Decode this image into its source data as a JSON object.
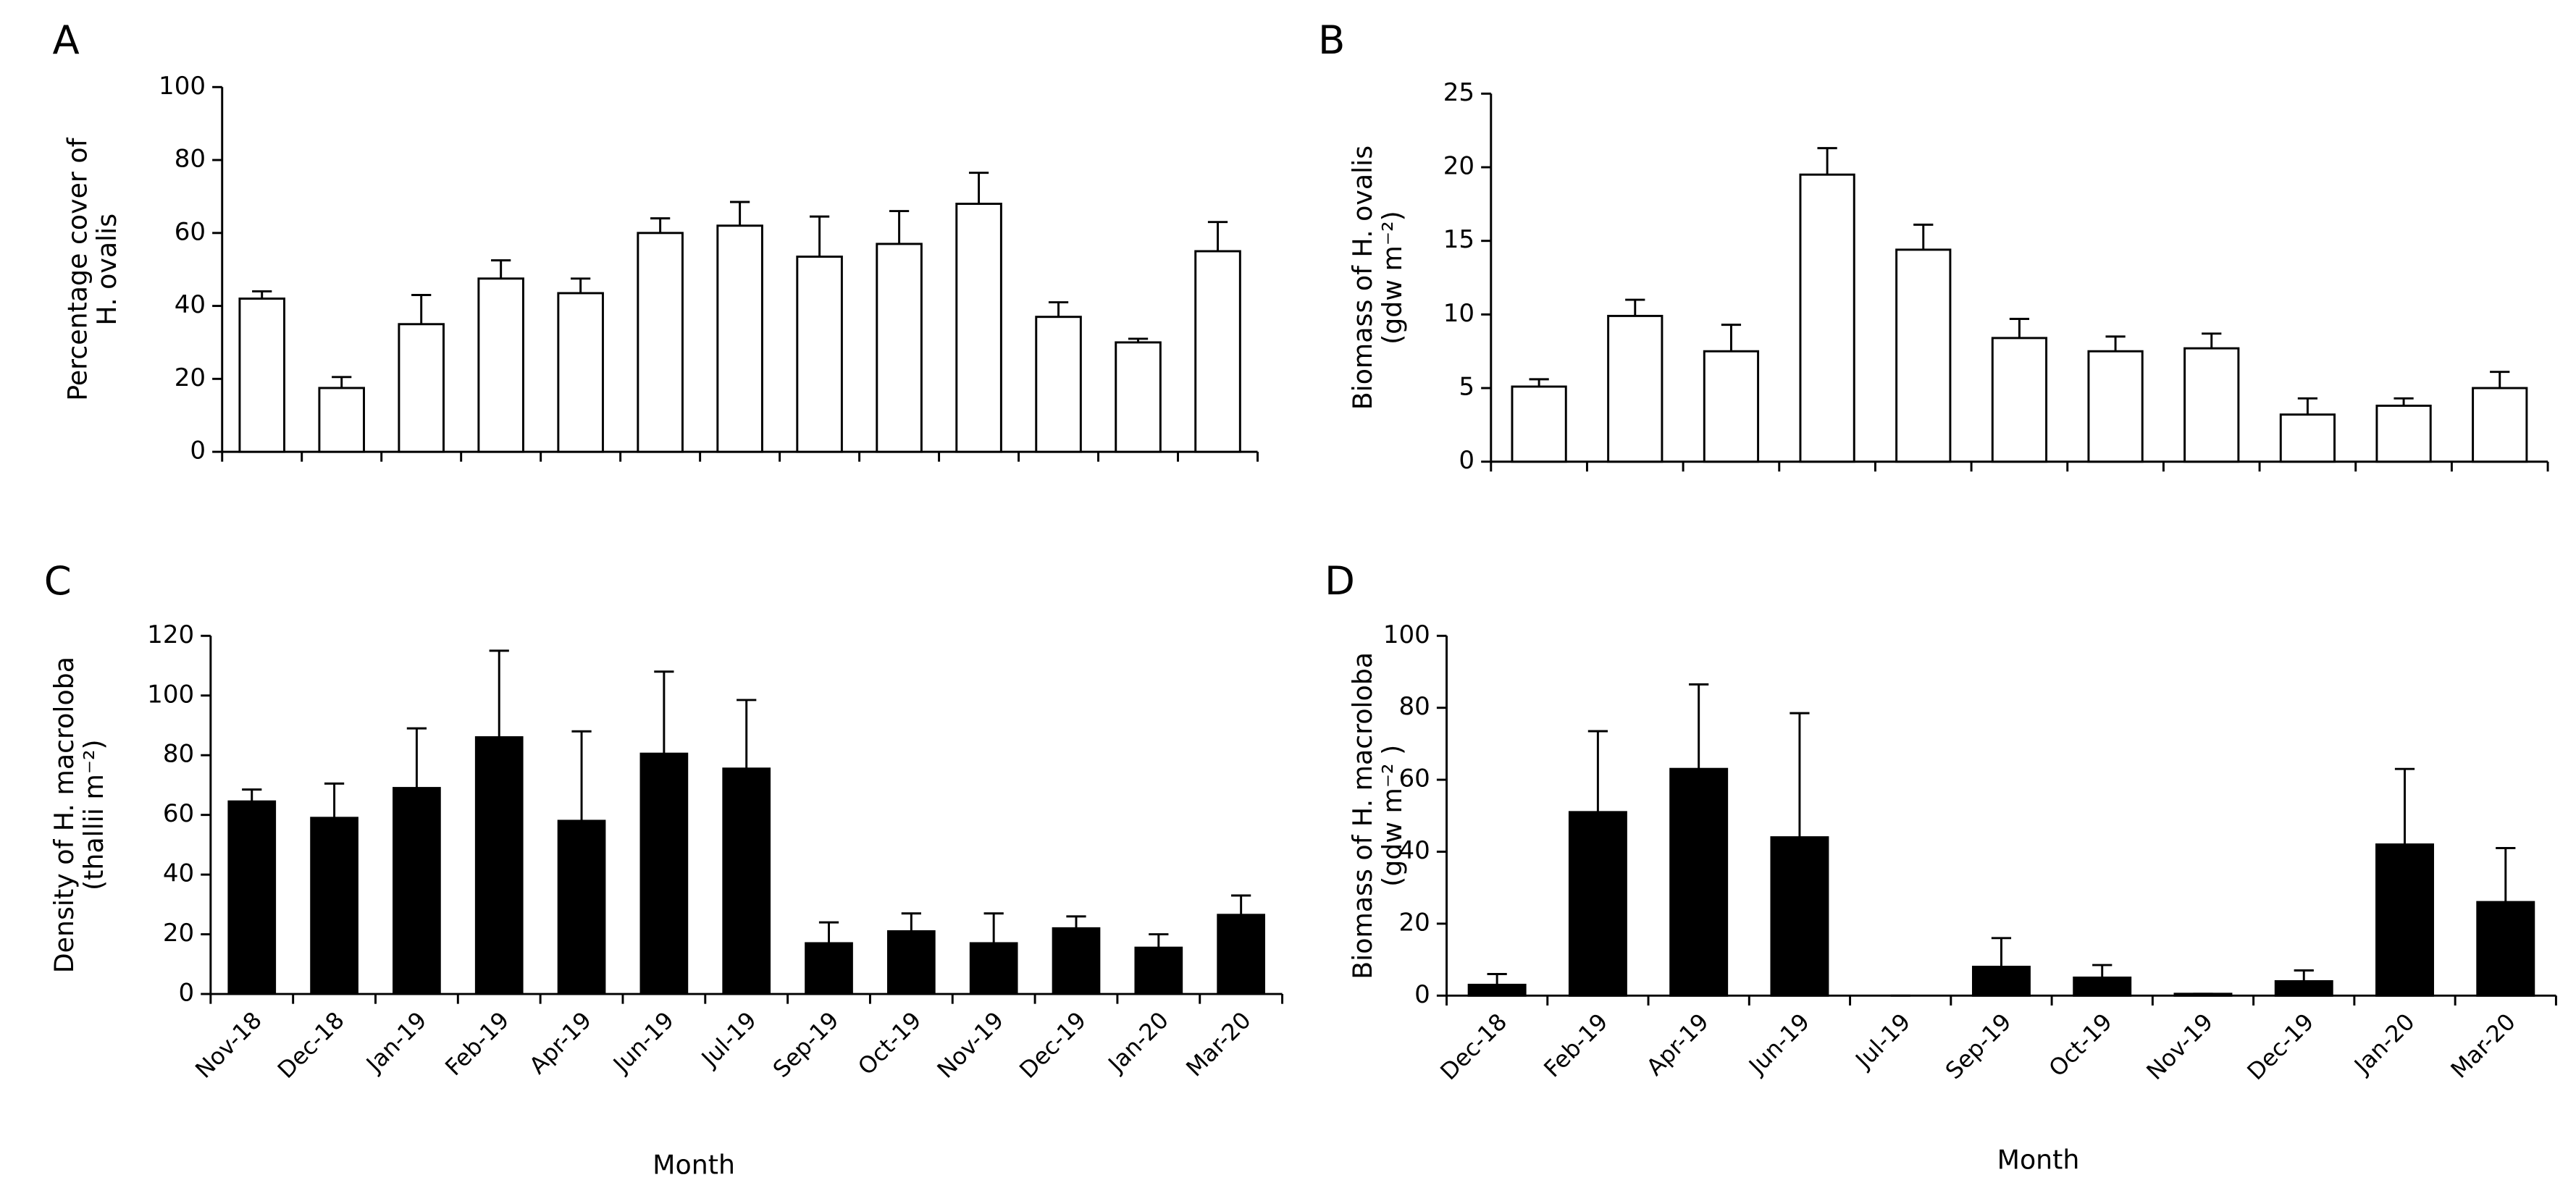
{
  "chart_data": [
    {
      "type": "bar",
      "panel": "A",
      "ylabel": [
        "Percentage cover of",
        "H. ovalis"
      ],
      "color": "#ffffff",
      "categories": [
        null,
        null,
        null,
        null,
        null,
        null,
        null,
        null,
        null,
        null,
        null,
        null,
        null
      ],
      "values": [
        42,
        17.5,
        35,
        47.5,
        43.5,
        60,
        62,
        53.5,
        57,
        68,
        37,
        30,
        55
      ],
      "errors": [
        2,
        3,
        8,
        5,
        4,
        4,
        6.5,
        11,
        9,
        8.5,
        4,
        1,
        8
      ],
      "ylim": [
        0,
        100
      ],
      "yticks": [
        0,
        20,
        40,
        60,
        80,
        100
      ]
    },
    {
      "type": "bar",
      "panel": "B",
      "ylabel": [
        "Biomass of H. ovalis",
        "(gdw m⁻²)"
      ],
      "color": "#ffffff",
      "categories": [
        null,
        null,
        null,
        null,
        null,
        null,
        null,
        null,
        null,
        null,
        null
      ],
      "values": [
        5.1,
        9.9,
        7.5,
        19.5,
        14.4,
        8.4,
        7.5,
        7.7,
        3.2,
        3.8,
        5
      ],
      "errors": [
        0.5,
        1.1,
        1.8,
        1.8,
        1.7,
        1.3,
        1,
        1,
        1.1,
        0.5,
        1.1
      ],
      "ylim": [
        0,
        25
      ],
      "yticks": [
        0,
        5,
        10,
        15,
        20,
        25
      ]
    },
    {
      "type": "bar",
      "panel": "C",
      "ylabel": [
        "Density of H. macroloba",
        "(thallii  m⁻²)"
      ],
      "xlabel": "Month",
      "color": "#000000",
      "categories": [
        "Nov-18",
        "Dec-18",
        "Jan-19",
        "Feb-19",
        "Apr-19",
        "Jun-19",
        "Jul-19",
        "Sep-19",
        "Oct-19",
        "Nov-19",
        "Dec-19",
        "Jan-20",
        "Mar-20"
      ],
      "values": [
        64.5,
        59,
        69,
        86,
        58,
        80.5,
        75.5,
        17,
        21,
        17,
        22,
        15.5,
        26.5
      ],
      "errors": [
        4,
        11.5,
        20,
        29,
        30,
        27.5,
        23,
        7,
        6,
        10,
        4,
        4.5,
        6.5
      ],
      "ylim": [
        0,
        120
      ],
      "yticks": [
        0,
        20,
        40,
        60,
        80,
        100,
        120
      ]
    },
    {
      "type": "bar",
      "panel": "D",
      "ylabel": [
        "Biomass of H. macroloba",
        "(gdw m⁻² )"
      ],
      "xlabel": "Month",
      "color": "#000000",
      "categories": [
        "Dec-18",
        "Feb-19",
        "Apr-19",
        "Jun-19",
        "Jul-19",
        "Sep-19",
        "Oct-19",
        "Nov-19",
        "Dec-19",
        "Jan-20",
        "Mar-20"
      ],
      "values": [
        3,
        51,
        63,
        44,
        0,
        8,
        5,
        0.5,
        4,
        42,
        26
      ],
      "errors": [
        3,
        22.5,
        23.5,
        34.5,
        0,
        8,
        3.5,
        0,
        3,
        21,
        15
      ],
      "ylim": [
        0,
        100
      ],
      "yticks": [
        0,
        20,
        40,
        60,
        80,
        100
      ]
    }
  ]
}
